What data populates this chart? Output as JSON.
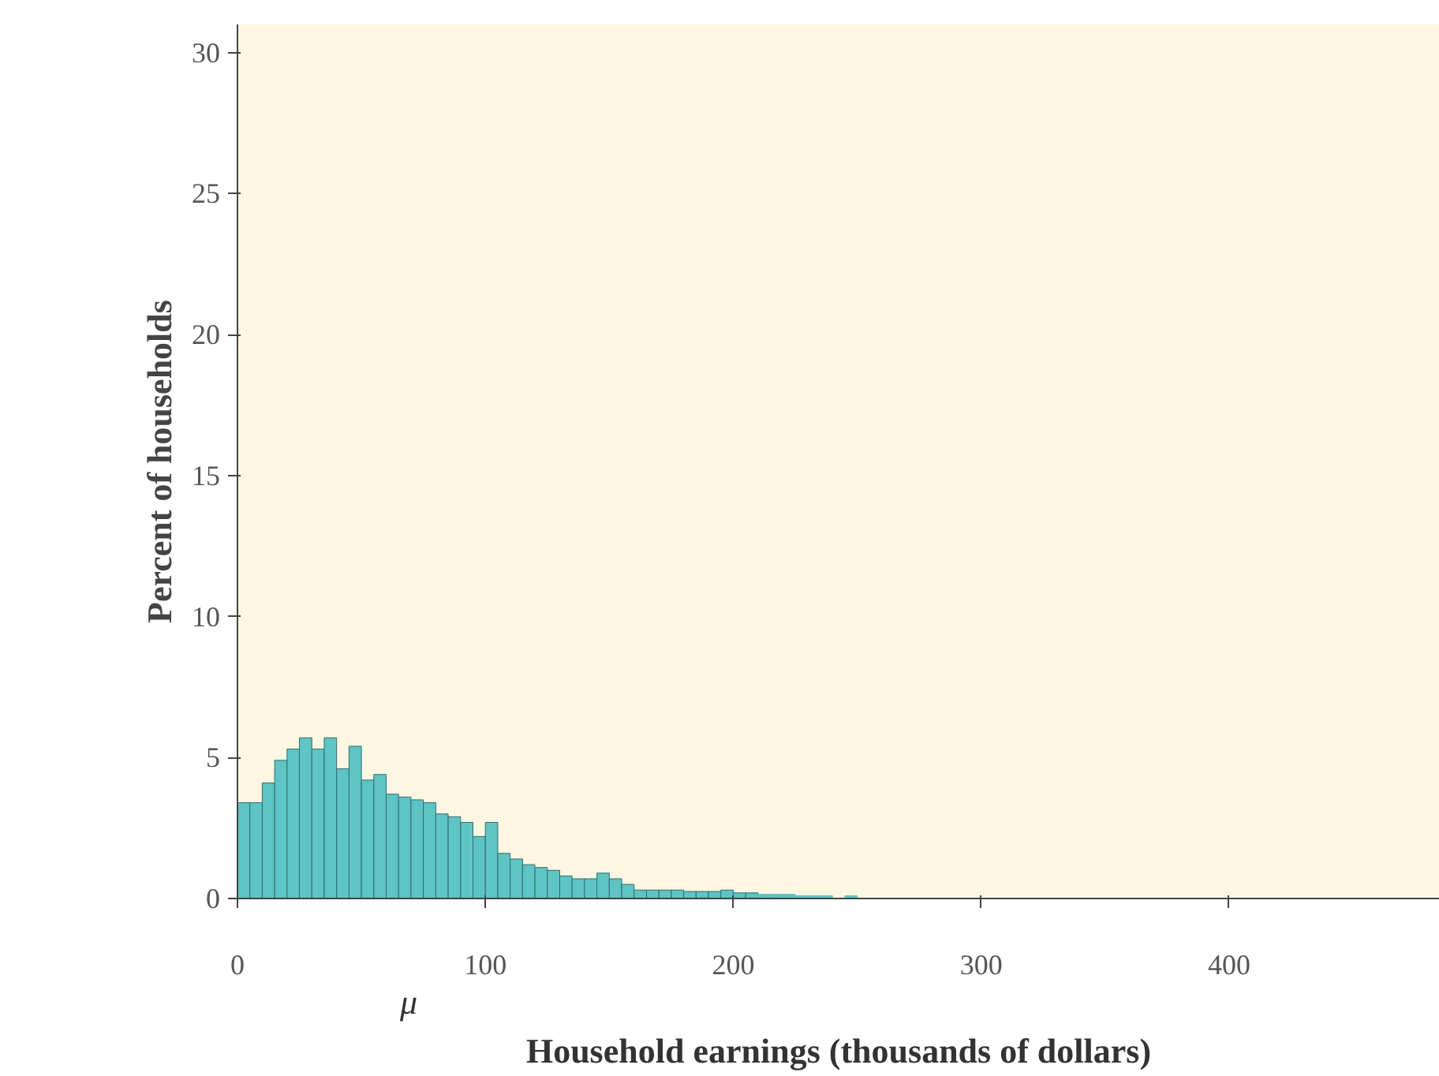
{
  "chart_data": {
    "type": "histogram",
    "xlabel": "Household earnings (thousands of dollars)",
    "ylabel": "Percent of households",
    "bins": [
      0,
      5,
      10,
      15,
      20,
      25,
      30,
      35,
      40,
      45,
      50,
      55,
      60,
      65,
      70,
      75,
      80,
      85,
      90,
      95,
      100,
      105,
      110,
      115,
      120,
      125,
      130,
      135,
      140,
      145,
      150,
      155,
      160,
      165,
      170,
      175,
      180,
      185,
      190,
      195,
      200,
      205,
      210,
      215,
      220,
      225,
      230,
      235,
      240,
      245,
      250
    ],
    "values": [
      3.4,
      3.4,
      4.1,
      4.9,
      5.3,
      5.7,
      5.3,
      5.7,
      4.6,
      5.4,
      4.2,
      4.4,
      3.7,
      3.6,
      3.5,
      3.4,
      3.0,
      2.9,
      2.7,
      2.2,
      2.7,
      1.6,
      1.4,
      1.2,
      1.1,
      1.0,
      0.8,
      0.7,
      0.7,
      0.9,
      0.7,
      0.5,
      0.3,
      0.3,
      0.3,
      0.3,
      0.25,
      0.25,
      0.25,
      0.3,
      0.2,
      0.2,
      0.15,
      0.15,
      0.15,
      0.1,
      0.1,
      0.1,
      0,
      0.1
    ],
    "color": "#5ec4c4",
    "xlim": [
      0,
      485
    ],
    "ylim": [
      0,
      31
    ],
    "xticks": [
      0,
      100,
      200,
      300,
      400
    ],
    "yticks": [
      0,
      5,
      10,
      15,
      20,
      25,
      30
    ],
    "grid": false,
    "annotations": [
      "μ"
    ]
  }
}
